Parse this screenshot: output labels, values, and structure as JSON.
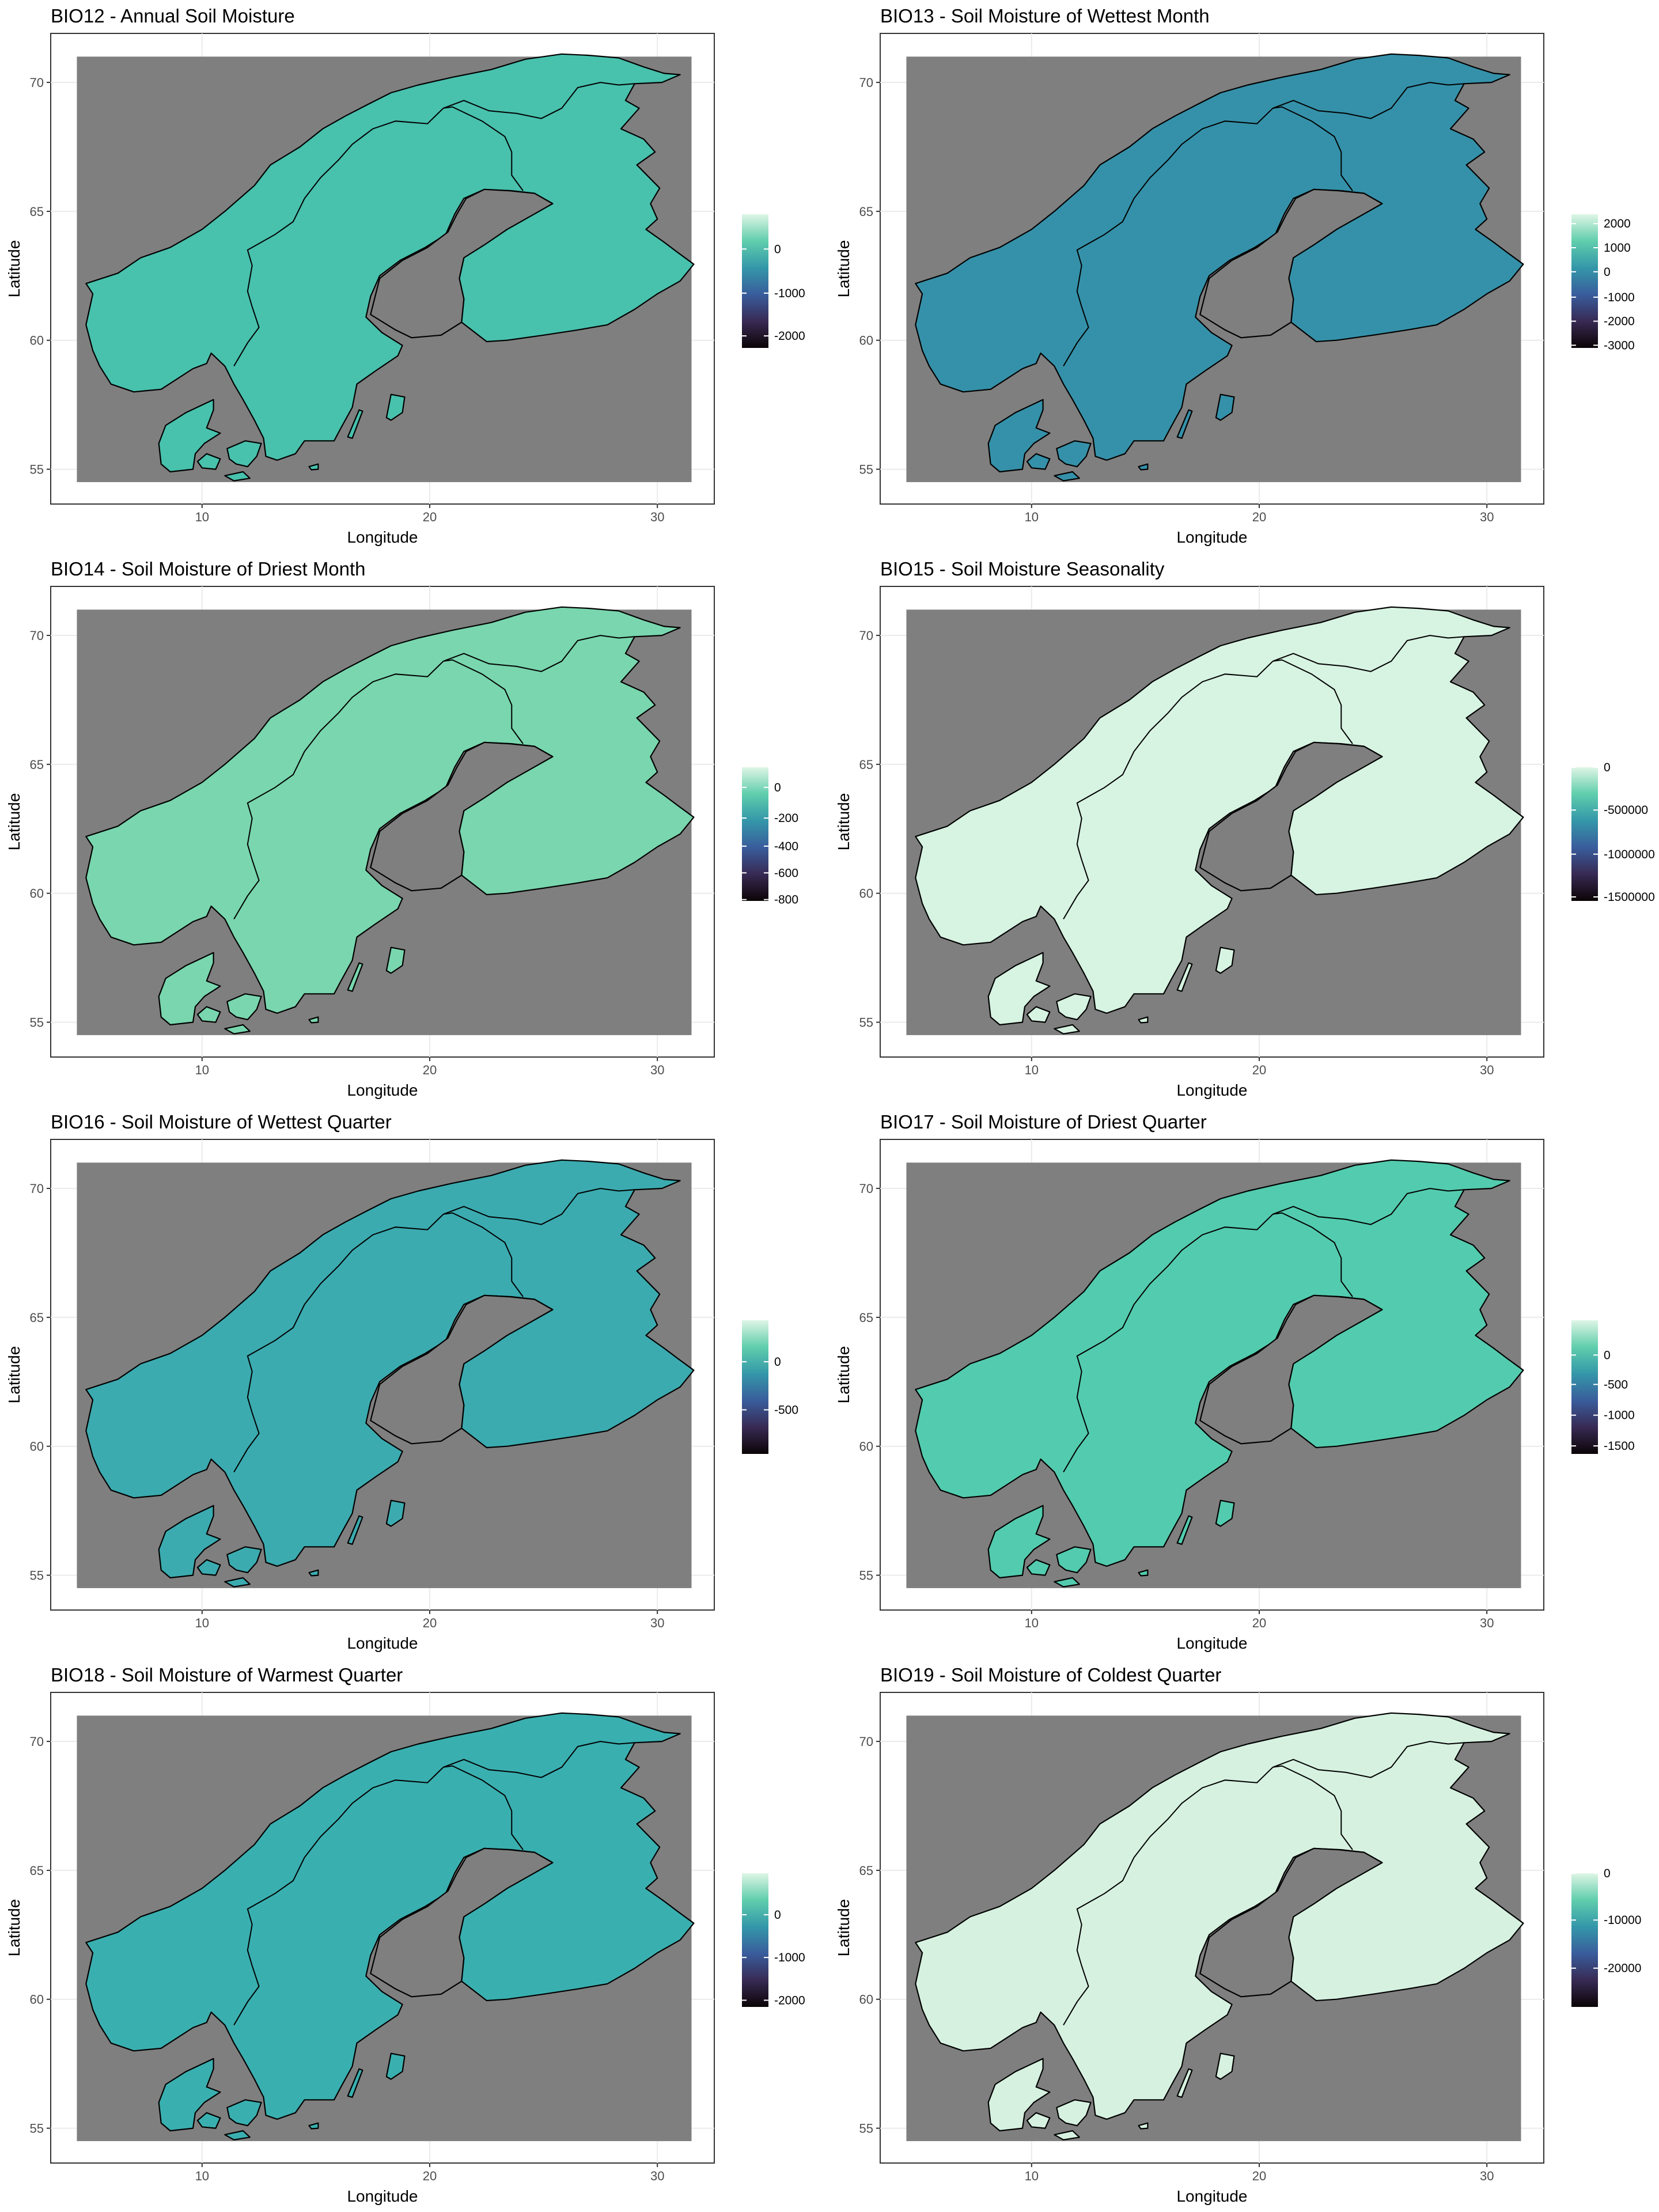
{
  "colors": {
    "sea": "#7f7f7f",
    "gradient_stops": [
      "#0b0405",
      "#382a54",
      "#395d9c",
      "#3497a9",
      "#60ceac",
      "#def5e5"
    ]
  },
  "x_axis": {
    "label": "Longitude",
    "ticks": [
      "10",
      "20",
      "30"
    ]
  },
  "y_axis": {
    "label": "Latitude",
    "ticks": [
      "55",
      "60",
      "65",
      "70"
    ]
  },
  "panels": [
    {
      "title": "BIO12 - Annual Soil Moisture",
      "fill": "#48c1ad",
      "legend": {
        "labels": [
          "0",
          "-1000",
          "-2000"
        ],
        "positions": [
          0.26,
          0.59,
          0.91
        ]
      }
    },
    {
      "title": "BIO13 - Soil Moisture of Wettest Month",
      "fill": "#3591a9",
      "legend": {
        "labels": [
          "2000",
          "1000",
          "0",
          "-1000",
          "-2000",
          "-3000"
        ],
        "positions": [
          0.07,
          0.25,
          0.43,
          0.62,
          0.8,
          0.98
        ]
      }
    },
    {
      "title": "BIO14 - Soil Moisture of Driest Month",
      "fill": "#79d6ae",
      "legend": {
        "labels": [
          "0",
          "-200",
          "-400",
          "-600",
          "-800"
        ],
        "positions": [
          0.15,
          0.38,
          0.59,
          0.79,
          0.99
        ]
      }
    },
    {
      "title": "BIO15 - Soil Moisture Seasonality",
      "fill": "#d7f3e2",
      "legend": {
        "labels": [
          "0",
          "-500000",
          "-1000000",
          "-1500000"
        ],
        "positions": [
          0.0,
          0.32,
          0.65,
          0.97
        ]
      }
    },
    {
      "title": "BIO16 - Soil Moisture of Wettest Quarter",
      "fill": "#3babb0",
      "legend": {
        "labels": [
          "0",
          "-500"
        ],
        "positions": [
          0.31,
          0.67
        ]
      }
    },
    {
      "title": "BIO17 - Soil Moisture of Driest Quarter",
      "fill": "#53cbae",
      "legend": {
        "labels": [
          "0",
          "-500",
          "-1000",
          "-1500"
        ],
        "positions": [
          0.26,
          0.48,
          0.71,
          0.94
        ]
      }
    },
    {
      "title": "BIO18 - Soil Moisture of Warmest Quarter",
      "fill": "#3aafb0",
      "legend": {
        "labels": [
          "0",
          "-1000",
          "-2000"
        ],
        "positions": [
          0.31,
          0.63,
          0.95
        ]
      }
    },
    {
      "title": "BIO19 - Soil Moisture of Coldest Quarter",
      "fill": "#d6f1e0",
      "legend": {
        "labels": [
          "0",
          "-10000",
          "-20000"
        ],
        "positions": [
          0.0,
          0.35,
          0.71
        ]
      }
    }
  ]
}
